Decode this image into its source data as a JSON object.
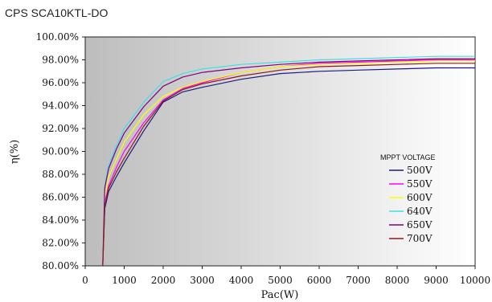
{
  "chart_data": {
    "type": "line",
    "title": "CPS SCA10KTL-DO",
    "xlabel": "Pac(W)",
    "ylabel": "η(%)",
    "xlim": [
      0,
      10000
    ],
    "ylim": [
      80,
      100
    ],
    "x_ticks": [
      "0",
      "1000",
      "2000",
      "3000",
      "4000",
      "5000",
      "6000",
      "7000",
      "8000",
      "9000",
      "10000"
    ],
    "y_ticks": [
      "80.00%",
      "82.00%",
      "84.00%",
      "86.00%",
      "88.00%",
      "90.00%",
      "92.00%",
      "94.00%",
      "96.00%",
      "98.00%",
      "100.00%"
    ],
    "legend_title": "MPPT VOLTAGE",
    "legend_position": "right",
    "grid": false,
    "background": "gradient-gray-to-white",
    "x": [
      450,
      500,
      600,
      800,
      1000,
      1500,
      2000,
      2500,
      3000,
      4000,
      5000,
      6000,
      7000,
      8000,
      9000,
      10000
    ],
    "series": [
      {
        "name": "500V",
        "color": "#1a1a80",
        "values": [
          80.0,
          85.0,
          86.5,
          87.8,
          89.0,
          91.8,
          94.3,
          95.2,
          95.6,
          96.3,
          96.8,
          97.0,
          97.1,
          97.2,
          97.3,
          97.3
        ]
      },
      {
        "name": "550V",
        "color": "#ff00ff",
        "values": [
          80.0,
          85.5,
          87.0,
          88.6,
          90.0,
          92.5,
          94.5,
          95.5,
          96.0,
          96.9,
          97.4,
          97.7,
          97.8,
          97.9,
          98.0,
          98.0
        ]
      },
      {
        "name": "600V",
        "color": "#ffff00",
        "values": [
          80.0,
          86.0,
          87.8,
          89.3,
          90.8,
          93.2,
          94.8,
          95.6,
          96.1,
          96.9,
          97.4,
          97.6,
          97.7,
          97.8,
          97.9,
          97.9
        ]
      },
      {
        "name": "640V",
        "color": "#40e0e0",
        "values": [
          80.0,
          87.0,
          88.8,
          90.5,
          92.0,
          94.3,
          96.1,
          96.8,
          97.2,
          97.6,
          97.8,
          98.0,
          98.1,
          98.2,
          98.3,
          98.3
        ]
      },
      {
        "name": "650V",
        "color": "#800080",
        "values": [
          80.0,
          86.8,
          88.5,
          90.2,
          91.6,
          93.9,
          95.7,
          96.5,
          96.9,
          97.3,
          97.6,
          97.8,
          97.9,
          98.0,
          98.1,
          98.1
        ]
      },
      {
        "name": "700V",
        "color": "#8b1a1a",
        "values": [
          80.0,
          85.2,
          86.8,
          88.2,
          89.4,
          92.2,
          94.4,
          95.4,
          95.9,
          96.6,
          97.1,
          97.4,
          97.5,
          97.6,
          97.7,
          97.7
        ]
      }
    ]
  }
}
